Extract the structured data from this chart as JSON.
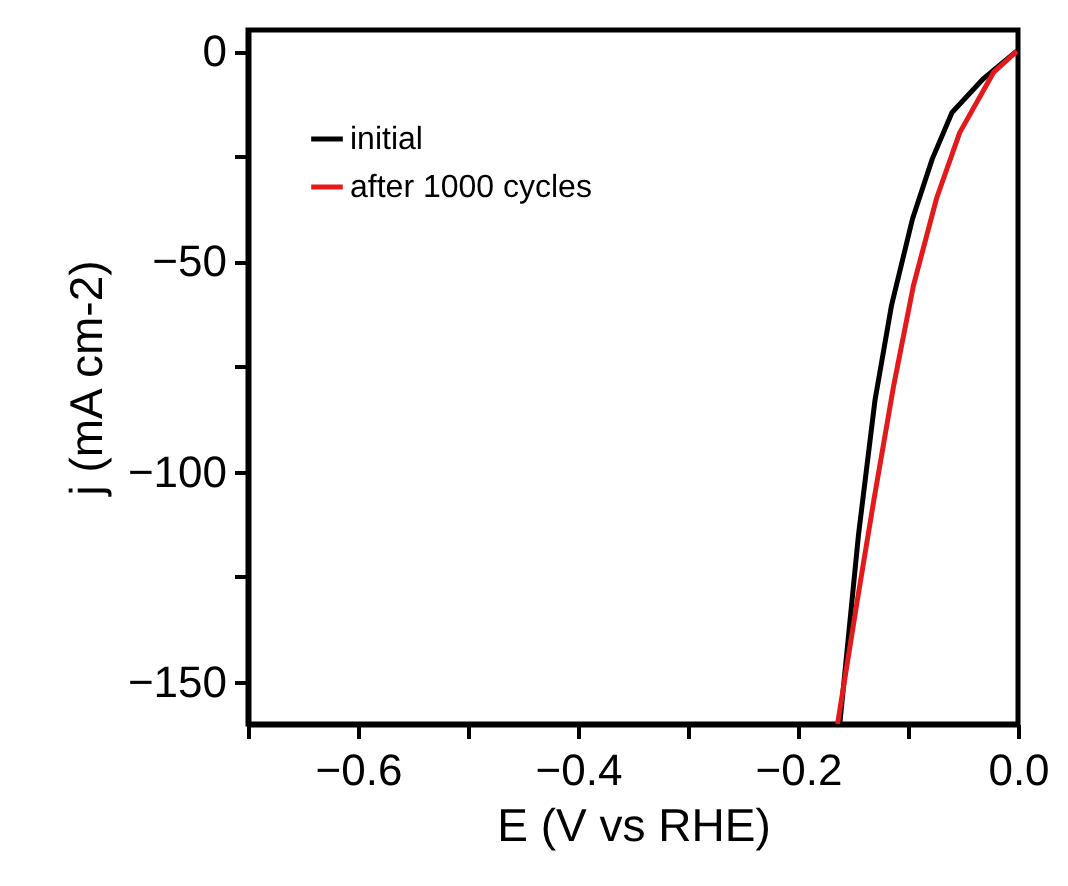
{
  "chart_data": {
    "type": "line",
    "xlabel": "E (V vs RHE)",
    "ylabel": "j (mA cm-2)",
    "xlim": [
      -0.7,
      0
    ],
    "ylim": [
      -160,
      5
    ],
    "xticks": [
      {
        "value": -0.7,
        "label": null
      },
      -0.6,
      {
        "value": -0.5,
        "label": null
      },
      -0.4,
      {
        "value": -0.3,
        "label": null
      },
      -0.2,
      {
        "value": -0.1,
        "label": null
      },
      {
        "value": 0,
        "label": "0.0"
      }
    ],
    "yticks": [
      -150,
      {
        "value": -125,
        "label": null
      },
      -100,
      {
        "value": -75,
        "label": null
      },
      -50,
      {
        "value": -25,
        "label": null
      },
      0
    ],
    "grid": false,
    "legend": "top left",
    "line_style": "solid",
    "series": [
      {
        "name": "initial",
        "color": "#000000",
        "x": [
          -0.001,
          -0.032,
          -0.06,
          -0.078,
          -0.096,
          -0.115,
          -0.13,
          -0.145,
          -0.162
        ],
        "values": [
          0,
          -6.7,
          -14.6,
          -25.7,
          -40,
          -60.5,
          -83,
          -115,
          -160
        ]
      },
      {
        "name": "after 1000 cycles",
        "color": "#e31a1c",
        "x": [
          -0.001,
          -0.022,
          -0.053,
          -0.074,
          -0.095,
          -0.113,
          -0.131,
          -0.146,
          -0.164
        ],
        "values": [
          0,
          -5,
          -19.4,
          -35,
          -55.7,
          -79.5,
          -106.7,
          -130.5,
          -160
        ]
      }
    ]
  }
}
